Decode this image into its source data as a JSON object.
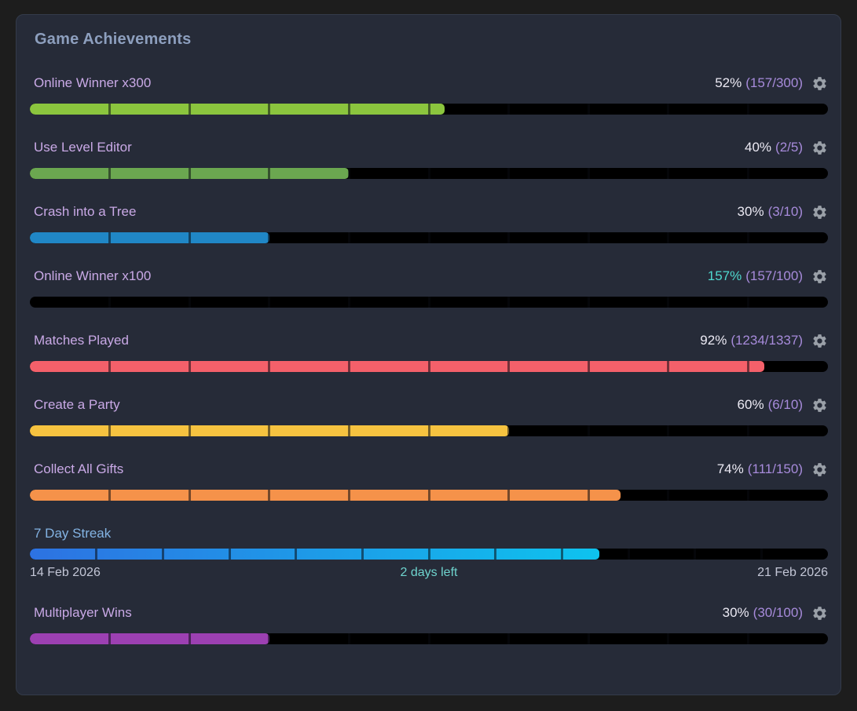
{
  "panel": {
    "title": "Game Achievements"
  },
  "colors": {
    "page_bg": "#1d1d1d",
    "panel_bg": "#262b38",
    "title_color": "#8d9fbe",
    "label_color": "#c9a9e6",
    "percent_color": "#eceaf4",
    "fraction_color": "#a78bdb",
    "overflow_percent_color": "#4fd9cf",
    "gear_color": "#9aa0a8",
    "track_color": "#000000",
    "divider_color": "rgba(10,11,16,0.55)",
    "streak_label_color": "#83b3e3",
    "date_color": "#c3c6d6",
    "days_left_color": "#6fd4ce"
  },
  "achievements": [
    {
      "name": "Online Winner x300",
      "percent_label": "52%",
      "fraction_label": "(157/300)",
      "progress": 52,
      "fill_color": "#8bc53e",
      "segments": 10,
      "has_gear": true
    },
    {
      "name": "Use Level Editor",
      "percent_label": "40%",
      "fraction_label": "(2/5)",
      "progress": 40,
      "fill_color": "#6ba750",
      "segments": 10,
      "has_gear": true
    },
    {
      "name": "Crash into a Tree",
      "percent_label": "30%",
      "fraction_label": "(3/10)",
      "progress": 30,
      "fill_color": "#2087c6",
      "segments": 10,
      "has_gear": true
    },
    {
      "name": "Online Winner x100",
      "percent_label": "157%",
      "fraction_label": "(157/100)",
      "progress": 0,
      "fill_color": "#000000",
      "segments": 10,
      "has_gear": true,
      "percent_color": "#4fd9cf"
    },
    {
      "name": "Matches Played",
      "percent_label": "92%",
      "fraction_label": "(1234/1337)",
      "progress": 92,
      "fill_color": "#f4606a",
      "segments": 10,
      "has_gear": true
    },
    {
      "name": "Create a Party",
      "percent_label": "60%",
      "fraction_label": "(6/10)",
      "progress": 60,
      "fill_color": "#f6c340",
      "segments": 10,
      "has_gear": true
    },
    {
      "name": "Collect All Gifts",
      "percent_label": "74%",
      "fraction_label": "(111/150)",
      "progress": 74,
      "fill_color": "#f5924a",
      "segments": 10,
      "has_gear": true
    },
    {
      "name": "7 Day Streak",
      "type": "streak",
      "progress": 71.4,
      "fill_gradient": [
        "#2d72e2",
        "#0ec3ee"
      ],
      "segments": 12,
      "has_gear": false,
      "name_color": "#83b3e3",
      "start_date": "14 Feb 2026",
      "days_left_label": "2 days left",
      "end_date": "21 Feb 2026"
    },
    {
      "name": "Multiplayer Wins",
      "percent_label": "30%",
      "fraction_label": "(30/100)",
      "progress": 30,
      "fill_color": "#9c40b2",
      "segments": 10,
      "has_gear": true
    }
  ]
}
